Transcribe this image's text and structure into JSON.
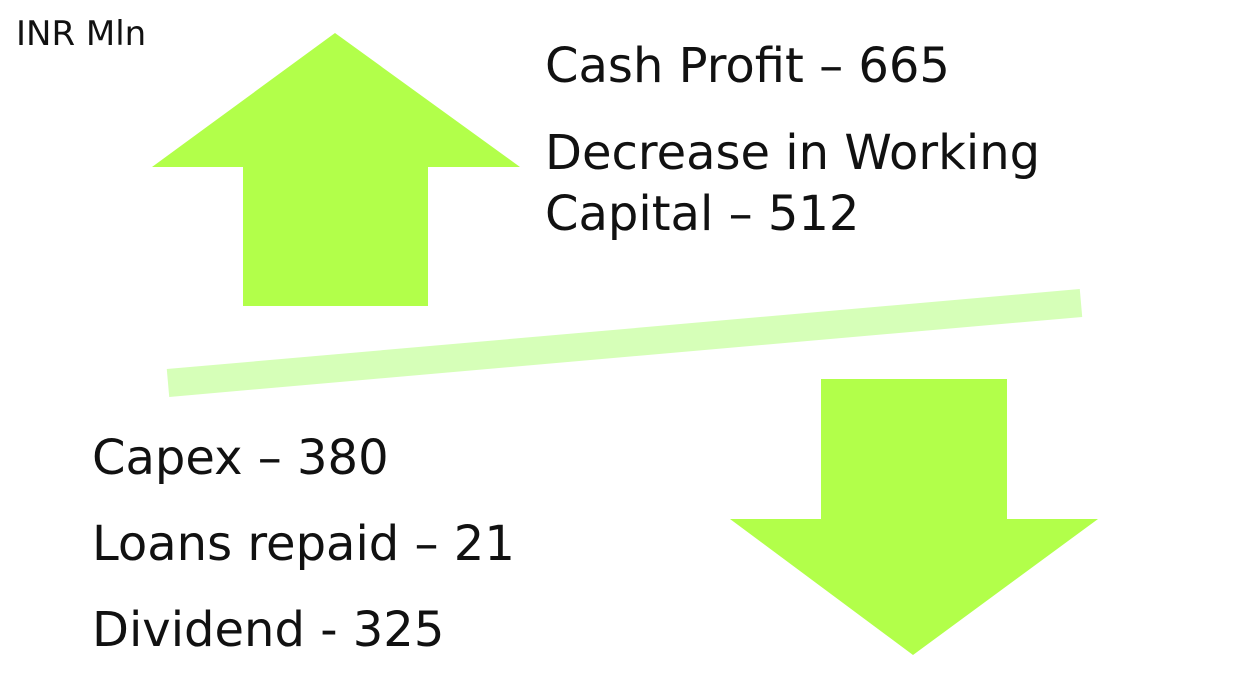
{
  "unit": "INR Mln",
  "inflows": [
    "Cash Profit – 665",
    "Decrease in Working Capital – 512"
  ],
  "outflows": [
    "Capex – 380",
    "Loans repaid – 21",
    "Dividend - 325"
  ]
}
